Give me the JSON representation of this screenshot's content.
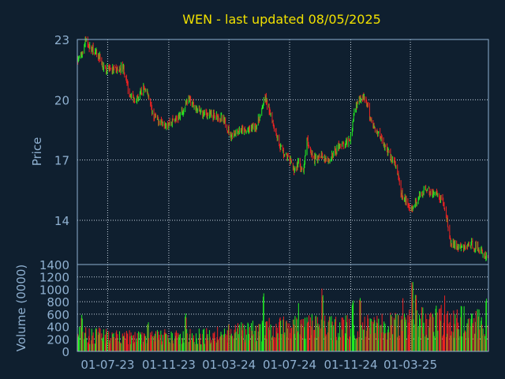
{
  "chart_data": {
    "type": "candlestick",
    "title": "WEN - last updated 08/05/2025",
    "colors": {
      "background": "#0f1f2f",
      "frame": "#8fb0d0",
      "grid": "#c8d4e0",
      "up": "#22ee22",
      "down": "#ee2222",
      "title": "#f0e000",
      "text": "#8fb0d0"
    },
    "price_panel": {
      "ylabel": "Price",
      "ylim": [
        11.8,
        23
      ],
      "yticks": [
        "23",
        "20",
        "17",
        "14"
      ],
      "ytick_values": [
        23,
        20,
        17,
        14
      ],
      "grid": true
    },
    "volume_panel": {
      "ylabel": "Volume (0000)",
      "ylim": [
        0,
        1400
      ],
      "yticks": [
        "1400",
        "1200",
        "1000",
        "800",
        "600",
        "400",
        "200",
        "0"
      ],
      "ytick_values": [
        1400,
        1200,
        1000,
        800,
        600,
        400,
        200,
        0
      ],
      "grid": true
    },
    "x_axis": {
      "start": "2023-05-01",
      "end": "2025-08-05",
      "tick_labels": [
        "01-07-23",
        "01-11-23",
        "01-03-24",
        "01-07-24",
        "01-11-24",
        "01-03-25"
      ],
      "tick_dates": [
        "2023-07-01",
        "2023-11-01",
        "2024-03-01",
        "2024-07-01",
        "2024-11-01",
        "2025-03-01"
      ]
    },
    "price_path": [
      [
        "2023-05-01",
        21.9
      ],
      [
        "2023-05-10",
        22.3
      ],
      [
        "2023-05-18",
        23.0
      ],
      [
        "2023-05-26",
        22.6
      ],
      [
        "2023-06-05",
        22.4
      ],
      [
        "2023-06-15",
        22.1
      ],
      [
        "2023-06-25",
        21.5
      ],
      [
        "2023-07-05",
        21.6
      ],
      [
        "2023-07-15",
        21.4
      ],
      [
        "2023-07-25",
        21.5
      ],
      [
        "2023-08-01",
        21.7
      ],
      [
        "2023-08-08",
        20.8
      ],
      [
        "2023-08-15",
        20.3
      ],
      [
        "2023-08-25",
        20.0
      ],
      [
        "2023-09-05",
        20.3
      ],
      [
        "2023-09-12",
        20.6
      ],
      [
        "2023-09-20",
        20.3
      ],
      [
        "2023-09-30",
        19.2
      ],
      [
        "2023-10-10",
        19.0
      ],
      [
        "2023-10-20",
        18.9
      ],
      [
        "2023-11-01",
        18.8
      ],
      [
        "2023-11-10",
        19.0
      ],
      [
        "2023-11-20",
        19.1
      ],
      [
        "2023-12-01",
        19.5
      ],
      [
        "2023-12-10",
        20.1
      ],
      [
        "2023-12-20",
        19.7
      ],
      [
        "2024-01-01",
        19.4
      ],
      [
        "2024-01-15",
        19.3
      ],
      [
        "2024-02-01",
        19.2
      ],
      [
        "2024-02-15",
        19.1
      ],
      [
        "2024-02-25",
        18.7
      ],
      [
        "2024-03-05",
        18.2
      ],
      [
        "2024-03-15",
        18.4
      ],
      [
        "2024-03-25",
        18.5
      ],
      [
        "2024-04-05",
        18.4
      ],
      [
        "2024-04-15",
        18.6
      ],
      [
        "2024-04-25",
        18.7
      ],
      [
        "2024-05-05",
        19.3
      ],
      [
        "2024-05-12",
        20.2
      ],
      [
        "2024-05-20",
        19.6
      ],
      [
        "2024-06-01",
        18.6
      ],
      [
        "2024-06-10",
        17.8
      ],
      [
        "2024-06-20",
        17.3
      ],
      [
        "2024-07-01",
        17.0
      ],
      [
        "2024-07-10",
        16.5
      ],
      [
        "2024-07-20",
        16.9
      ],
      [
        "2024-07-28",
        16.2
      ],
      [
        "2024-08-05",
        18.0
      ],
      [
        "2024-08-10",
        17.6
      ],
      [
        "2024-08-20",
        17.0
      ],
      [
        "2024-09-01",
        17.3
      ],
      [
        "2024-09-10",
        17.1
      ],
      [
        "2024-09-20",
        17.0
      ],
      [
        "2024-10-01",
        17.4
      ],
      [
        "2024-10-10",
        17.8
      ],
      [
        "2024-10-20",
        17.7
      ],
      [
        "2024-11-01",
        18.2
      ],
      [
        "2024-11-10",
        19.6
      ],
      [
        "2024-11-20",
        20.1
      ],
      [
        "2024-12-01",
        20.0
      ],
      [
        "2024-12-10",
        19.1
      ],
      [
        "2024-12-20",
        18.5
      ],
      [
        "2025-01-01",
        18.2
      ],
      [
        "2025-01-10",
        17.6
      ],
      [
        "2025-01-20",
        17.2
      ],
      [
        "2025-02-01",
        16.6
      ],
      [
        "2025-02-10",
        15.3
      ],
      [
        "2025-02-20",
        15.0
      ],
      [
        "2025-03-01",
        14.5
      ],
      [
        "2025-03-10",
        14.8
      ],
      [
        "2025-03-20",
        15.2
      ],
      [
        "2025-04-01",
        15.6
      ],
      [
        "2025-04-10",
        15.4
      ],
      [
        "2025-04-20",
        15.3
      ],
      [
        "2025-05-01",
        15.0
      ],
      [
        "2025-05-10",
        14.6
      ],
      [
        "2025-05-20",
        12.9
      ],
      [
        "2025-06-01",
        12.7
      ],
      [
        "2025-06-15",
        12.6
      ],
      [
        "2025-07-01",
        12.8
      ],
      [
        "2025-07-15",
        12.6
      ],
      [
        "2025-08-05",
        12.1
      ]
    ],
    "volume_profile": [
      [
        "2023-05-01",
        300
      ],
      [
        "2023-08-01",
        250
      ],
      [
        "2023-11-01",
        260
      ],
      [
        "2024-02-01",
        280
      ],
      [
        "2024-05-01",
        380
      ],
      [
        "2024-08-01",
        430
      ],
      [
        "2024-11-01",
        420
      ],
      [
        "2025-02-01",
        450
      ],
      [
        "2025-05-01",
        560
      ],
      [
        "2025-08-05",
        480
      ]
    ],
    "volume_peaks": [
      [
        "2023-05-10",
        600
      ],
      [
        "2023-09-20",
        480
      ],
      [
        "2023-12-05",
        640
      ],
      [
        "2024-05-10",
        990
      ],
      [
        "2024-07-20",
        820
      ],
      [
        "2024-09-05",
        1020
      ],
      [
        "2024-11-05",
        850
      ],
      [
        "2024-11-20",
        880
      ],
      [
        "2025-02-15",
        900
      ],
      [
        "2025-03-05",
        1250
      ],
      [
        "2025-03-12",
        980
      ],
      [
        "2025-05-10",
        1050
      ],
      [
        "2025-08-01",
        880
      ]
    ]
  }
}
